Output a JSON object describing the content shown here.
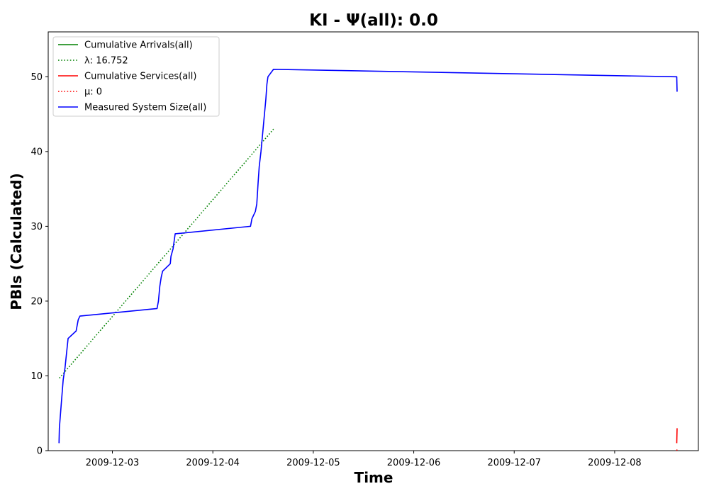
{
  "chart_data": {
    "type": "line",
    "title": "KI -  Ψ(all): 0.0",
    "xlabel": "Time",
    "ylabel": "PBIs (Calculated)",
    "x_axis_type": "date",
    "xlim": [
      "2009-12-02 08:40",
      "2009-12-08 20:00"
    ],
    "ylim": [
      0,
      56
    ],
    "x_ticks": [
      {
        "value": "2009-12-03",
        "label": "2009-12-03"
      },
      {
        "value": "2009-12-04",
        "label": "2009-12-04"
      },
      {
        "value": "2009-12-05",
        "label": "2009-12-05"
      },
      {
        "value": "2009-12-06",
        "label": "2009-12-06"
      },
      {
        "value": "2009-12-07",
        "label": "2009-12-07"
      },
      {
        "value": "2009-12-08",
        "label": "2009-12-08"
      }
    ],
    "y_ticks": [
      0,
      10,
      20,
      30,
      40,
      50
    ],
    "grid": false,
    "legend_position": "top-left",
    "series": [
      {
        "name": "Cumulative Arrivals(all)",
        "color": "#008000",
        "style": "solid",
        "points": []
      },
      {
        "name": "λ: 16.752",
        "color": "#008000",
        "style": "dotted",
        "points": [
          {
            "x": "2009-12-02 11:20",
            "y": 9.7
          },
          {
            "x": "2009-12-04 14:30",
            "y": 43
          }
        ]
      },
      {
        "name": "Cumulative Services(all)",
        "color": "#ff0000",
        "style": "solid",
        "points": [
          {
            "x": "2009-12-08 14:50",
            "y": 1
          },
          {
            "x": "2009-12-08 14:55",
            "y": 3
          }
        ]
      },
      {
        "name": "μ: 0",
        "color": "#ff0000",
        "style": "dotted",
        "points": [
          {
            "x": "2009-12-08 14:50",
            "y": 0
          },
          {
            "x": "2009-12-08 14:55",
            "y": 0.2
          }
        ]
      },
      {
        "name": "Measured System Size(all)",
        "color": "#0000ff",
        "style": "solid",
        "points": [
          {
            "x": "2009-12-02 11:15",
            "y": 1
          },
          {
            "x": "2009-12-02 11:20",
            "y": 3
          },
          {
            "x": "2009-12-02 11:45",
            "y": 6
          },
          {
            "x": "2009-12-02 12:15",
            "y": 9.5
          },
          {
            "x": "2009-12-02 12:40",
            "y": 11
          },
          {
            "x": "2009-12-02 13:25",
            "y": 15
          },
          {
            "x": "2009-12-02 15:20",
            "y": 16
          },
          {
            "x": "2009-12-02 15:50",
            "y": 17.5
          },
          {
            "x": "2009-12-02 16:15",
            "y": 18
          },
          {
            "x": "2009-12-03 10:40",
            "y": 19
          },
          {
            "x": "2009-12-03 11:00",
            "y": 20
          },
          {
            "x": "2009-12-03 11:20",
            "y": 22
          },
          {
            "x": "2009-12-03 11:40",
            "y": 23.2
          },
          {
            "x": "2009-12-03 12:00",
            "y": 24
          },
          {
            "x": "2009-12-03 13:50",
            "y": 25
          },
          {
            "x": "2009-12-03 14:00",
            "y": 26
          },
          {
            "x": "2009-12-03 14:30",
            "y": 27
          },
          {
            "x": "2009-12-03 15:00",
            "y": 29
          },
          {
            "x": "2009-12-04 09:00",
            "y": 30
          },
          {
            "x": "2009-12-04 09:20",
            "y": 31
          },
          {
            "x": "2009-12-04 10:10",
            "y": 32
          },
          {
            "x": "2009-12-04 10:30",
            "y": 33
          },
          {
            "x": "2009-12-04 10:50",
            "y": 36
          },
          {
            "x": "2009-12-04 11:05",
            "y": 38
          },
          {
            "x": "2009-12-04 11:30",
            "y": 40
          },
          {
            "x": "2009-12-04 12:00",
            "y": 43
          },
          {
            "x": "2009-12-04 12:20",
            "y": 45
          },
          {
            "x": "2009-12-04 12:40",
            "y": 47
          },
          {
            "x": "2009-12-04 12:55",
            "y": 49
          },
          {
            "x": "2009-12-04 13:10",
            "y": 50
          },
          {
            "x": "2009-12-04 14:30",
            "y": 51
          },
          {
            "x": "2009-12-08 14:30",
            "y": 50
          },
          {
            "x": "2009-12-08 14:50",
            "y": 50
          },
          {
            "x": "2009-12-08 14:55",
            "y": 48
          }
        ]
      }
    ]
  }
}
